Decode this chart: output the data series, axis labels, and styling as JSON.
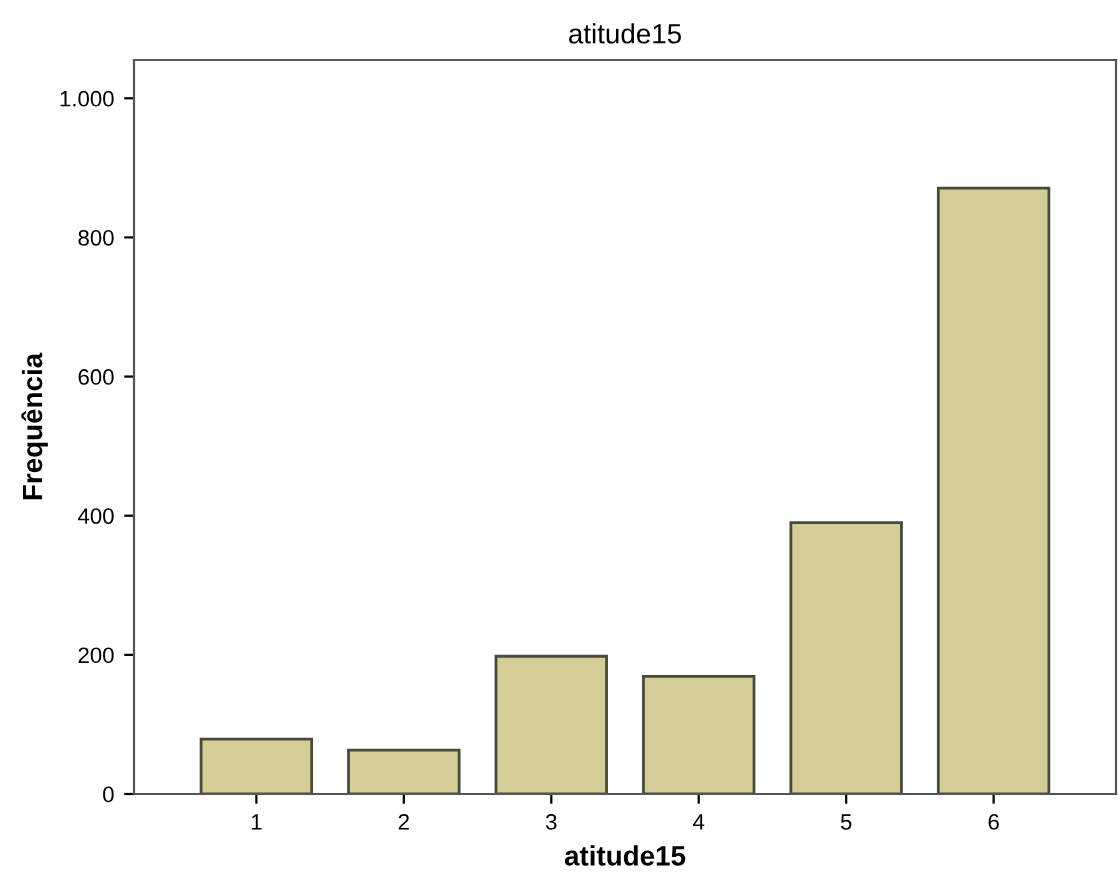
{
  "chart_data": {
    "type": "bar",
    "title": "atitude15",
    "xlabel": "atitude15",
    "ylabel": "Frequência",
    "categories": [
      "1",
      "2",
      "3",
      "4",
      "5",
      "6"
    ],
    "values": [
      79,
      63,
      198,
      169,
      390,
      871
    ],
    "color": "#d3ce97",
    "ylim": [
      0,
      1055
    ],
    "yticks": [
      0,
      200,
      400,
      600,
      800,
      {
        "value": 1000,
        "label": "1.000"
      }
    ],
    "grid": false
  }
}
